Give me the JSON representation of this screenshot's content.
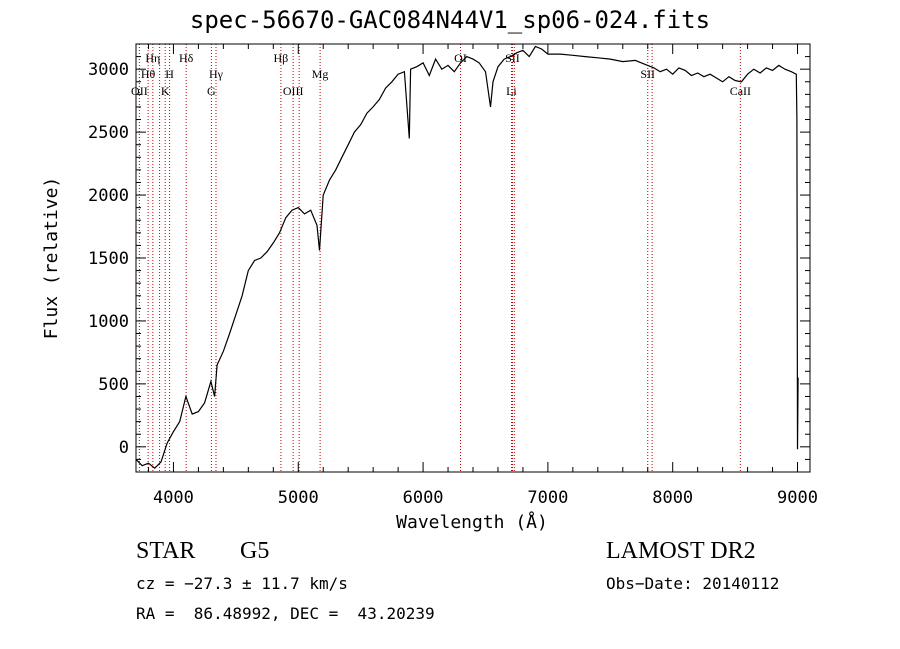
{
  "chart_data": {
    "type": "line",
    "title": "spec-56670-GAC084N44V1_sp06-024.fits",
    "xlabel": "Wavelength (Å)",
    "ylabel": "Flux (relative)",
    "xlim": [
      3700,
      9100
    ],
    "ylim": [
      -200,
      3200
    ],
    "x_ticks": [
      4000,
      5000,
      6000,
      7000,
      8000,
      9000
    ],
    "y_ticks": [
      0,
      500,
      1000,
      1500,
      2000,
      2500,
      3000
    ],
    "grid": false,
    "series": [
      {
        "x": [
          3700,
          3750,
          3800,
          3850,
          3900,
          3950,
          4000,
          4050,
          4100,
          4150,
          4200,
          4250,
          4300,
          4330,
          4350,
          4400,
          4450,
          4500,
          4550,
          4600,
          4650,
          4700,
          4750,
          4800,
          4850,
          4900,
          4950,
          5000,
          5050,
          5100,
          5150,
          5170,
          5200,
          5250,
          5300,
          5350,
          5400,
          5450,
          5500,
          5550,
          5600,
          5650,
          5700,
          5750,
          5800,
          5850,
          5890,
          5900,
          5950,
          6000,
          6050,
          6100,
          6150,
          6200,
          6250,
          6300,
          6350,
          6400,
          6450,
          6500,
          6540,
          6560,
          6600,
          6650,
          6700,
          6750,
          6800,
          6850,
          6900,
          6950,
          7000,
          7100,
          7200,
          7300,
          7400,
          7500,
          7600,
          7700,
          7750,
          7800,
          7850,
          7900,
          7950,
          8000,
          8050,
          8100,
          8150,
          8200,
          8250,
          8300,
          8350,
          8400,
          8450,
          8500,
          8550,
          8600,
          8650,
          8700,
          8750,
          8800,
          8850,
          8900,
          8950,
          8990,
          8995,
          9000,
          9005
        ],
        "y": [
          -100,
          -150,
          -130,
          -170,
          -120,
          30,
          120,
          200,
          400,
          260,
          280,
          350,
          520,
          400,
          650,
          760,
          900,
          1050,
          1200,
          1400,
          1480,
          1500,
          1550,
          1620,
          1700,
          1820,
          1880,
          1900,
          1850,
          1880,
          1760,
          1560,
          2000,
          2120,
          2200,
          2300,
          2400,
          2500,
          2560,
          2650,
          2700,
          2760,
          2850,
          2900,
          2960,
          2980,
          2450,
          3000,
          3020,
          3050,
          2950,
          3080,
          3000,
          3030,
          2980,
          3050,
          3100,
          3080,
          3050,
          2980,
          2700,
          2900,
          3020,
          3080,
          3100,
          3130,
          3150,
          3100,
          3180,
          3160,
          3120,
          3120,
          3110,
          3100,
          3090,
          3080,
          3060,
          3070,
          3050,
          3030,
          3010,
          2980,
          3000,
          2960,
          3010,
          2990,
          2950,
          2970,
          2940,
          2960,
          2930,
          2900,
          2940,
          2910,
          2900,
          2960,
          3000,
          2970,
          3010,
          2990,
          3030,
          3000,
          2980,
          2960,
          2600,
          -20,
          550
        ]
      }
    ],
    "lines": [
      {
        "label": "Hη",
        "x": 3835,
        "row": 1
      },
      {
        "label": "Hθ",
        "x": 3797,
        "row": 2
      },
      {
        "label": "OII",
        "x": 3727,
        "row": 3
      },
      {
        "label": "H",
        "x": 3969,
        "row": 2
      },
      {
        "label": "K",
        "x": 3934,
        "row": 3
      },
      {
        "label": "Hδ",
        "x": 4102,
        "row": 1
      },
      {
        "label": "Hγ",
        "x": 4341,
        "row": 2
      },
      {
        "label": "G",
        "x": 4304,
        "row": 3
      },
      {
        "label": "Hβ",
        "x": 4861,
        "row": 1
      },
      {
        "label": "OIII",
        "x": 4959,
        "row": 3
      },
      {
        "label": "Mg",
        "x": 5175,
        "row": 2
      },
      {
        "label": "OI",
        "x": 6300,
        "row": 1
      },
      {
        "label": "SII",
        "x": 6716,
        "row": 1
      },
      {
        "label": "Li",
        "x": 6708,
        "row": 3
      },
      {
        "label": "SII",
        "x": 7800,
        "row": 2
      },
      {
        "label": "CaII",
        "x": 8542,
        "row": 3
      }
    ],
    "extra_lines_x": [
      3889,
      4861,
      4959,
      5007,
      6731,
      6708,
      7835,
      8542
    ]
  },
  "info": {
    "class": "STAR",
    "subclass": "G5",
    "survey": "LAMOST DR2",
    "cz": "cz = −27.3 ± 11.7 km/s",
    "obs_date": "Obs−Date: 20140112",
    "radec": "RA =  86.48992, DEC =  43.20239"
  }
}
